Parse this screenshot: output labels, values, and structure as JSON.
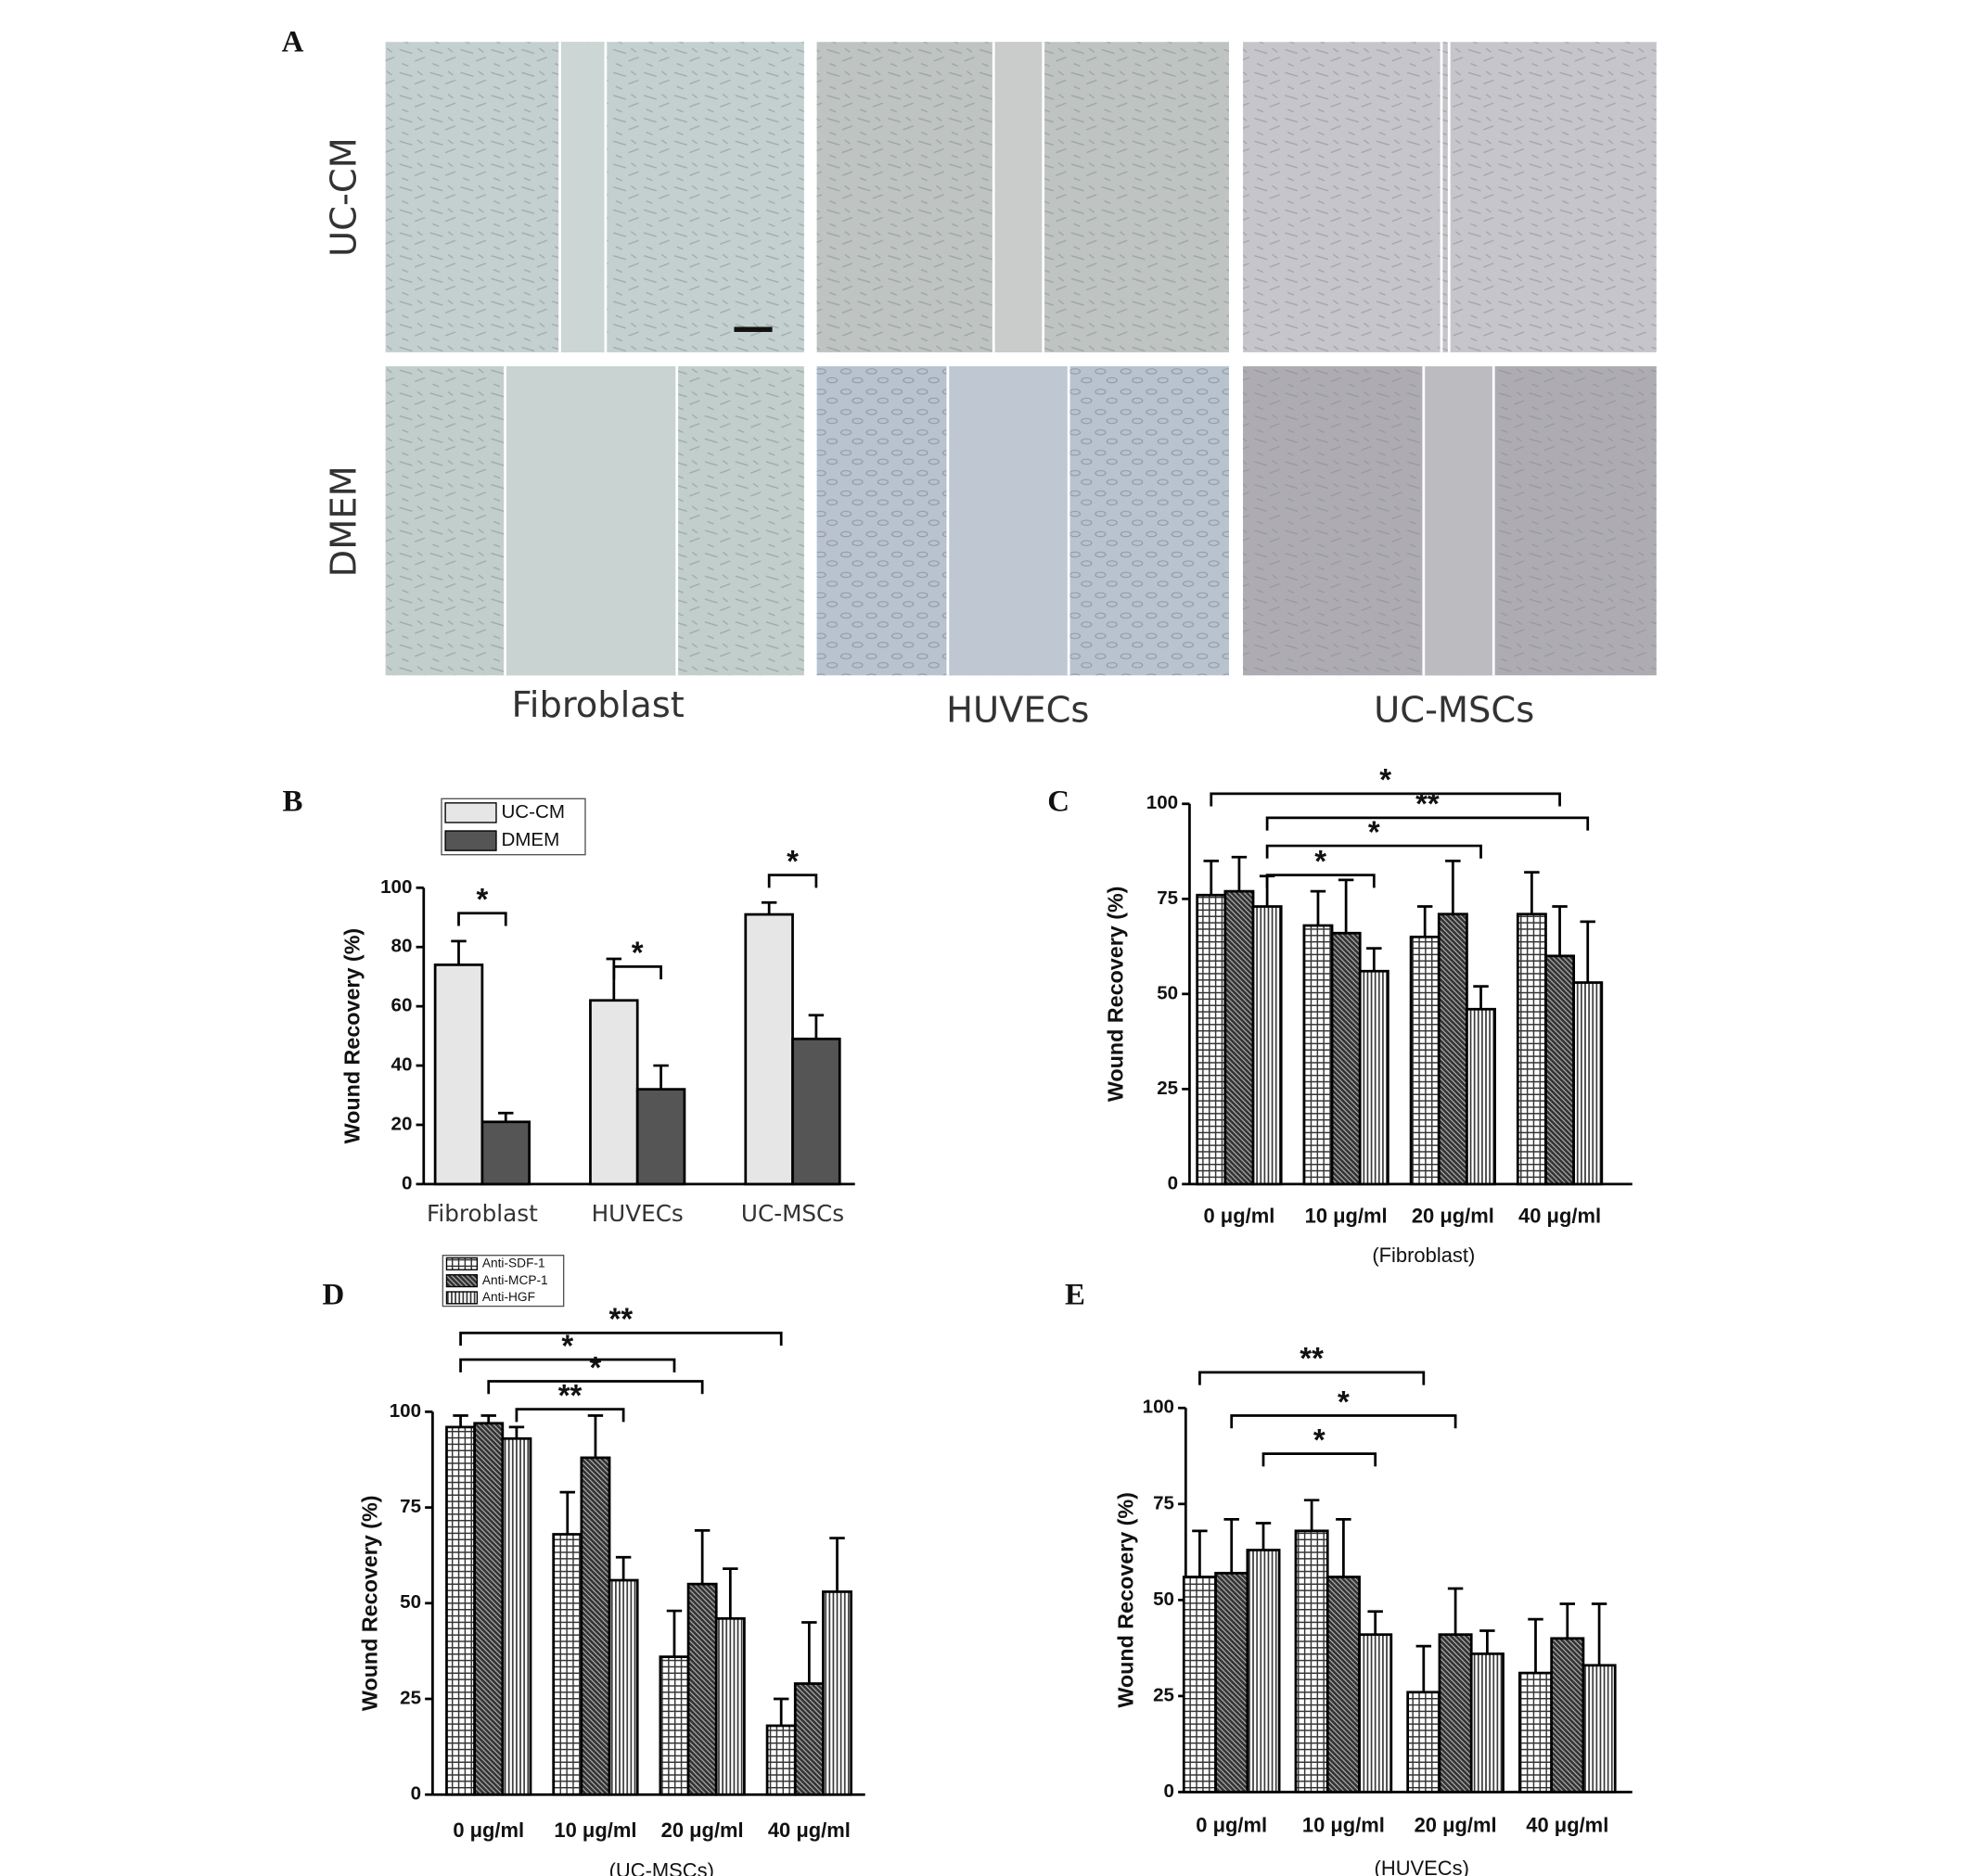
{
  "panel_a": {
    "label": "A",
    "row_labels": [
      "UC-CM",
      "DMEM"
    ],
    "column_labels": [
      "Fibroblast",
      "HUVECs",
      "UC-MSCs"
    ]
  },
  "chart_data": [
    {
      "type": "bar",
      "panel_label": "B",
      "y_label": "Wound Recovery (%)",
      "categories": [
        "Fibroblast",
        "HUVECs",
        "UC-MSCs"
      ],
      "series": [
        {
          "name": "UC-CM",
          "color": "#e6e6e6",
          "values": [
            74,
            62,
            91
          ],
          "errors": [
            8,
            14,
            4
          ]
        },
        {
          "name": "DMEM",
          "color": "#555555",
          "values": [
            21,
            32,
            49
          ],
          "errors": [
            3,
            8,
            8
          ]
        }
      ],
      "ylim": [
        0,
        100
      ],
      "yticks": [
        0,
        20,
        40,
        60,
        80,
        100
      ],
      "annotations": [
        "*",
        "*",
        "*"
      ],
      "legend": "top-left"
    },
    {
      "type": "bar",
      "panel_label": "C",
      "y_label": "Wound Recovery (%)",
      "x_label": "(Fibroblast)",
      "categories": [
        "0 μg/ml",
        "10 μg/ml",
        "20 μg/ml",
        "40 μg/ml"
      ],
      "series": [
        {
          "pattern": "grid",
          "color": "#333333",
          "values": [
            76,
            68,
            65,
            71
          ],
          "errors": [
            9,
            9,
            8,
            11
          ]
        },
        {
          "pattern": "diag",
          "color": "#333333",
          "values": [
            77,
            66,
            71,
            60
          ],
          "errors": [
            9,
            14,
            14,
            13
          ]
        },
        {
          "pattern": "vert",
          "color": "#333333",
          "values": [
            73,
            56,
            46,
            53
          ],
          "errors": [
            8,
            6,
            6,
            16
          ]
        }
      ],
      "ylim": [
        0,
        100
      ],
      "yticks": [
        0,
        25,
        50,
        75,
        100
      ],
      "annotations": [
        "*",
        "**",
        "*",
        "*"
      ]
    },
    {
      "type": "bar",
      "panel_label": "D",
      "y_label": "Wound Recovery (%)",
      "x_label": "(UC-MSCs)",
      "categories": [
        "0 μg/ml",
        "10 μg/ml",
        "20 μg/ml",
        "40 μg/ml"
      ],
      "series": [
        {
          "name": "Anti-SDF-1",
          "pattern": "grid",
          "color": "#333333",
          "values": [
            96,
            68,
            36,
            18
          ],
          "errors": [
            3,
            11,
            12,
            7
          ]
        },
        {
          "name": "Anti-MCP-1",
          "pattern": "diag",
          "color": "#333333",
          "values": [
            97,
            88,
            55,
            29
          ],
          "errors": [
            2,
            11,
            14,
            16
          ]
        },
        {
          "name": "Anti-HGF",
          "pattern": "vert",
          "color": "#333333",
          "values": [
            93,
            56,
            46,
            53
          ],
          "errors": [
            3,
            6,
            13,
            14
          ]
        }
      ],
      "ylim": [
        0,
        100
      ],
      "yticks": [
        0,
        25,
        50,
        75,
        100
      ],
      "annotations": [
        "**",
        "*",
        "*",
        "**"
      ],
      "legend": "top-left"
    },
    {
      "type": "bar",
      "panel_label": "E",
      "y_label": "Wound Recovery (%)",
      "x_label": "(HUVECs)",
      "categories": [
        "0 μg/ml",
        "10 μg/ml",
        "20 μg/ml",
        "40 μg/ml"
      ],
      "series": [
        {
          "pattern": "grid",
          "color": "#333333",
          "values": [
            56,
            68,
            26,
            31
          ],
          "errors": [
            12,
            8,
            12,
            14
          ]
        },
        {
          "pattern": "diag",
          "color": "#333333",
          "values": [
            57,
            56,
            41,
            40
          ],
          "errors": [
            14,
            15,
            12,
            9
          ]
        },
        {
          "pattern": "vert",
          "color": "#333333",
          "values": [
            63,
            41,
            36,
            33
          ],
          "errors": [
            7,
            6,
            6,
            16
          ]
        }
      ],
      "ylim": [
        0,
        100
      ],
      "yticks": [
        0,
        25,
        50,
        75,
        100
      ],
      "annotations": [
        "**",
        "*",
        "*"
      ]
    }
  ]
}
